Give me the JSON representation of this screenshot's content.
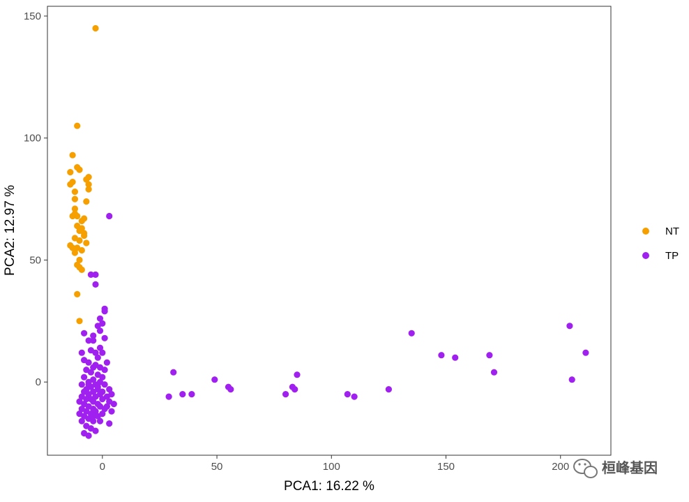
{
  "chart_data": {
    "type": "scatter",
    "title": "",
    "xlabel": "PCA1: 16.22 %",
    "ylabel": "PCA2: 12.97 %",
    "xlim": [
      -24,
      222
    ],
    "ylim": [
      -30,
      154
    ],
    "xticks": [
      0,
      50,
      100,
      150,
      200
    ],
    "xtick_labels": [
      "0",
      "50",
      "100",
      "150",
      "200"
    ],
    "yticks": [
      0,
      50,
      100,
      150
    ],
    "ytick_labels": [
      "0",
      "50",
      "100",
      "150"
    ],
    "grid": false,
    "legend_position": "right",
    "series": [
      {
        "name": "NT",
        "color": "#F5A000",
        "points": [
          [
            -3,
            145
          ],
          [
            -11,
            105
          ],
          [
            -13,
            93
          ],
          [
            -11,
            88
          ],
          [
            -10,
            87
          ],
          [
            -14,
            86
          ],
          [
            -13,
            82
          ],
          [
            -14,
            81
          ],
          [
            -12,
            78
          ],
          [
            -6,
            84
          ],
          [
            -7,
            83
          ],
          [
            -6,
            81
          ],
          [
            -6,
            79
          ],
          [
            -12,
            75
          ],
          [
            -7,
            74
          ],
          [
            -12,
            69
          ],
          [
            -11,
            68
          ],
          [
            -13,
            68
          ],
          [
            -8,
            67
          ],
          [
            -9,
            66
          ],
          [
            -11,
            64
          ],
          [
            -10,
            62
          ],
          [
            -8,
            61
          ],
          [
            -12,
            59
          ],
          [
            -10,
            58
          ],
          [
            -7,
            57
          ],
          [
            -13,
            55
          ],
          [
            -11,
            55
          ],
          [
            -9,
            54
          ],
          [
            -12,
            53
          ],
          [
            -10,
            50
          ],
          [
            -11,
            48
          ],
          [
            -10,
            47
          ],
          [
            -9,
            46
          ],
          [
            -11,
            36
          ],
          [
            -10,
            25
          ],
          [
            -14,
            56
          ],
          [
            -8,
            60
          ],
          [
            -12,
            71
          ],
          [
            -9,
            63
          ]
        ]
      },
      {
        "name": "TP",
        "color": "#A020F0",
        "points": [
          [
            3,
            68
          ],
          [
            -3,
            44
          ],
          [
            -5,
            44
          ],
          [
            -3,
            40
          ],
          [
            1,
            30
          ],
          [
            1,
            29
          ],
          [
            -1,
            26
          ],
          [
            0,
            24
          ],
          [
            -2,
            23
          ],
          [
            -1,
            21
          ],
          [
            -8,
            20
          ],
          [
            -4,
            19
          ],
          [
            1,
            18
          ],
          [
            -4,
            17
          ],
          [
            -6,
            17
          ],
          [
            -1,
            14
          ],
          [
            -5,
            13
          ],
          [
            -3,
            12
          ],
          [
            -9,
            12
          ],
          [
            0,
            12
          ],
          [
            -2,
            10
          ],
          [
            -8,
            9
          ],
          [
            -6,
            8
          ],
          [
            2,
            8
          ],
          [
            -3,
            7
          ],
          [
            -1,
            6
          ],
          [
            -4,
            6
          ],
          [
            -7,
            5
          ],
          [
            1,
            5
          ],
          [
            -5,
            4
          ],
          [
            -2,
            3
          ],
          [
            -8,
            2
          ],
          [
            0,
            2
          ],
          [
            -4,
            1
          ],
          [
            -6,
            0
          ],
          [
            -1,
            0
          ],
          [
            -9,
            -1
          ],
          [
            -3,
            -1
          ],
          [
            1,
            -1
          ],
          [
            -5,
            -2
          ],
          [
            -7,
            -3
          ],
          [
            -2,
            -3
          ],
          [
            3,
            -3
          ],
          [
            -8,
            -4
          ],
          [
            -4,
            -4
          ],
          [
            0,
            -4
          ],
          [
            -6,
            -5
          ],
          [
            -1,
            -5
          ],
          [
            4,
            -5
          ],
          [
            -9,
            -6
          ],
          [
            -3,
            -6
          ],
          [
            2,
            -6
          ],
          [
            -7,
            -7
          ],
          [
            -5,
            -7
          ],
          [
            0,
            -7
          ],
          [
            -10,
            -8
          ],
          [
            -4,
            -8
          ],
          [
            3,
            -8
          ],
          [
            -8,
            -9
          ],
          [
            -2,
            -9
          ],
          [
            5,
            -9
          ],
          [
            -6,
            -10
          ],
          [
            -1,
            -10
          ],
          [
            -9,
            -11
          ],
          [
            -4,
            -11
          ],
          [
            1,
            -11
          ],
          [
            -7,
            -12
          ],
          [
            -3,
            -12
          ],
          [
            4,
            -12
          ],
          [
            -10,
            -13
          ],
          [
            -5,
            -13
          ],
          [
            0,
            -13
          ],
          [
            -8,
            -14
          ],
          [
            -2,
            -14
          ],
          [
            -6,
            -15
          ],
          [
            -4,
            -16
          ],
          [
            -9,
            -16
          ],
          [
            -1,
            -16
          ],
          [
            3,
            -17
          ],
          [
            -7,
            -18
          ],
          [
            -5,
            -19
          ],
          [
            -3,
            -20
          ],
          [
            -8,
            -21
          ],
          [
            -6,
            -22
          ],
          [
            -4,
            -14
          ],
          [
            -2,
            -2
          ],
          [
            2,
            -10
          ],
          [
            -6,
            -1
          ],
          [
            29,
            -6
          ],
          [
            31,
            4
          ],
          [
            35,
            -5
          ],
          [
            39,
            -5
          ],
          [
            49,
            1
          ],
          [
            55,
            -2
          ],
          [
            56,
            -3
          ],
          [
            80,
            -5
          ],
          [
            83,
            -2
          ],
          [
            84,
            -3
          ],
          [
            85,
            3
          ],
          [
            107,
            -5
          ],
          [
            110,
            -6
          ],
          [
            125,
            -3
          ],
          [
            135,
            20
          ],
          [
            148,
            11
          ],
          [
            154,
            10
          ],
          [
            169,
            11
          ],
          [
            171,
            4
          ],
          [
            204,
            23
          ],
          [
            205,
            1
          ],
          [
            211,
            12
          ]
        ]
      }
    ]
  },
  "legend": {
    "items": [
      {
        "label": "NT",
        "color": "#F5A000"
      },
      {
        "label": "TP",
        "color": "#A020F0"
      }
    ]
  },
  "watermark": {
    "text": "桓峰基因",
    "icon": "wechat-icon"
  }
}
